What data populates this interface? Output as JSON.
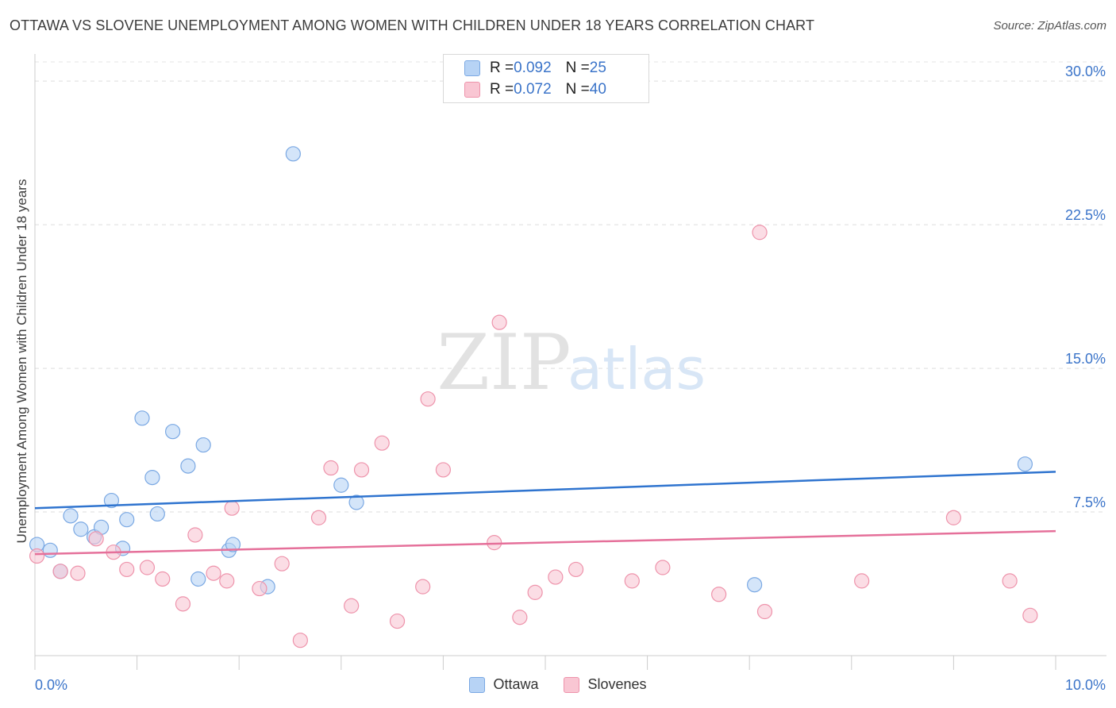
{
  "title": "OTTAWA VS SLOVENE UNEMPLOYMENT AMONG WOMEN WITH CHILDREN UNDER 18 YEARS CORRELATION CHART",
  "source": "Source: ZipAtlas.com",
  "watermark": {
    "zip": "ZIP",
    "atlas": "atlas"
  },
  "colors": {
    "ottawa_fill": "#b7d3f5",
    "ottawa_stroke": "#7aa8e3",
    "ottawa_line": "#2f74cf",
    "slovene_fill": "#f9c6d3",
    "slovene_stroke": "#ee93ab",
    "slovene_line": "#e5709a",
    "tick_label": "#3b74c9"
  },
  "legend": {
    "rows": [
      {
        "r_label": "R = ",
        "r_value": "0.092",
        "n_label": "N = ",
        "n_value": "25"
      },
      {
        "r_label": "R = ",
        "r_value": "0.072",
        "n_label": "N = ",
        "n_value": "40"
      }
    ]
  },
  "bottom_legend": [
    "Ottawa",
    "Slovenes"
  ],
  "chart_data": {
    "type": "scatter",
    "title": "OTTAWA VS SLOVENE UNEMPLOYMENT AMONG WOMEN WITH CHILDREN UNDER 18 YEARS CORRELATION CHART",
    "xlabel": "",
    "ylabel": "Unemployment Among Women with Children Under 18 years",
    "xlim": [
      0,
      10
    ],
    "ylim": [
      0,
      31
    ],
    "x_tick_labels": [
      "0.0%",
      "10.0%"
    ],
    "y_ticks": [
      7.5,
      15.0,
      22.5,
      30.0
    ],
    "y_tick_labels": [
      "7.5%",
      "15.0%",
      "22.5%",
      "30.0%"
    ],
    "grid": "horizontal dashed",
    "series": [
      {
        "name": "Ottawa",
        "R": 0.092,
        "N": 25,
        "trend": [
          [
            0,
            7.7
          ],
          [
            10,
            9.6
          ]
        ],
        "points": [
          [
            0.02,
            5.8
          ],
          [
            0.15,
            5.5
          ],
          [
            0.25,
            4.4
          ],
          [
            0.35,
            7.3
          ],
          [
            0.45,
            6.6
          ],
          [
            0.58,
            6.2
          ],
          [
            0.65,
            6.7
          ],
          [
            0.75,
            8.1
          ],
          [
            0.86,
            5.6
          ],
          [
            0.9,
            7.1
          ],
          [
            1.05,
            12.4
          ],
          [
            1.15,
            9.3
          ],
          [
            1.2,
            7.4
          ],
          [
            1.35,
            11.7
          ],
          [
            1.5,
            9.9
          ],
          [
            1.6,
            4.0
          ],
          [
            1.65,
            11.0
          ],
          [
            1.9,
            5.5
          ],
          [
            1.94,
            5.8
          ],
          [
            2.28,
            3.6
          ],
          [
            2.53,
            26.2
          ],
          [
            3.0,
            8.9
          ],
          [
            3.15,
            8.0
          ],
          [
            7.05,
            3.7
          ],
          [
            9.7,
            10.0
          ]
        ]
      },
      {
        "name": "Slovenes",
        "R": 0.072,
        "N": 40,
        "trend": [
          [
            0,
            5.3
          ],
          [
            10,
            6.5
          ]
        ],
        "points": [
          [
            0.02,
            5.2
          ],
          [
            0.25,
            4.4
          ],
          [
            0.42,
            4.3
          ],
          [
            0.6,
            6.1
          ],
          [
            0.77,
            5.4
          ],
          [
            0.9,
            4.5
          ],
          [
            1.1,
            4.6
          ],
          [
            1.25,
            4.0
          ],
          [
            1.45,
            2.7
          ],
          [
            1.57,
            6.3
          ],
          [
            1.75,
            4.3
          ],
          [
            1.88,
            3.9
          ],
          [
            1.93,
            7.7
          ],
          [
            2.2,
            3.5
          ],
          [
            2.42,
            4.8
          ],
          [
            2.6,
            0.8
          ],
          [
            2.78,
            7.2
          ],
          [
            2.9,
            9.8
          ],
          [
            3.1,
            2.6
          ],
          [
            3.2,
            9.7
          ],
          [
            3.4,
            11.1
          ],
          [
            3.55,
            1.8
          ],
          [
            3.8,
            3.6
          ],
          [
            3.85,
            13.4
          ],
          [
            4.0,
            9.7
          ],
          [
            4.5,
            5.9
          ],
          [
            4.55,
            17.4
          ],
          [
            4.75,
            2.0
          ],
          [
            4.9,
            3.3
          ],
          [
            5.1,
            4.1
          ],
          [
            5.3,
            4.5
          ],
          [
            5.85,
            3.9
          ],
          [
            6.15,
            4.6
          ],
          [
            6.7,
            3.2
          ],
          [
            7.1,
            22.1
          ],
          [
            7.15,
            2.3
          ],
          [
            8.1,
            3.9
          ],
          [
            9.0,
            7.2
          ],
          [
            9.55,
            3.9
          ],
          [
            9.75,
            2.1
          ]
        ]
      }
    ]
  }
}
